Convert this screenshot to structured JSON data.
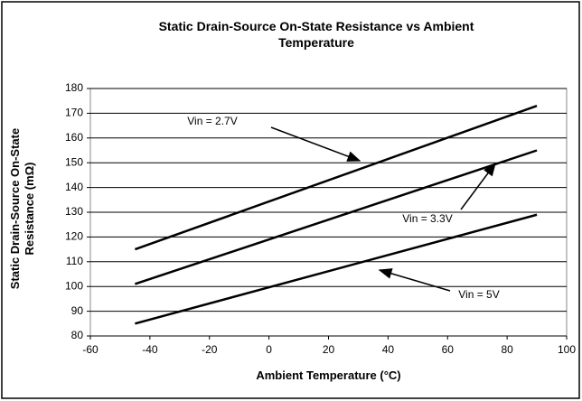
{
  "chart_data": {
    "type": "line",
    "title": "Static Drain-Source On-State Resistance vs Ambient Temperature",
    "x_label": "Ambient Temperature (°C)",
    "y_label": "Static Drain-Source On-State Resistance (mΩ)",
    "x": [
      -45,
      90
    ],
    "series": [
      {
        "name": "Vin = 2.7V",
        "color": "#000000",
        "values": [
          115,
          173
        ]
      },
      {
        "name": "Vin = 3.3V",
        "color": "#000000",
        "values": [
          101,
          155
        ]
      },
      {
        "name": "Vin = 5V",
        "color": "#000000",
        "values": [
          85,
          129
        ]
      }
    ],
    "xlim": [
      -60,
      100
    ],
    "xticks": [
      -60,
      -40,
      -20,
      0,
      20,
      40,
      60,
      80,
      100
    ],
    "ylim": [
      80,
      180
    ],
    "yticks": [
      80,
      90,
      100,
      110,
      120,
      130,
      140,
      150,
      160,
      170,
      180
    ],
    "grid": true
  }
}
